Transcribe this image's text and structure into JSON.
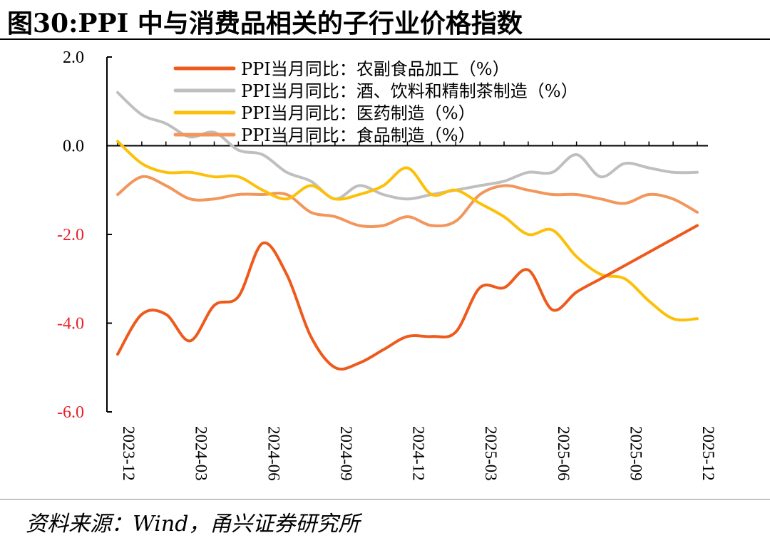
{
  "figure": {
    "title": "图30:PPI 中与消费品相关的子行业价格指数",
    "source": "资料来源：Wind，甬兴证券研究所"
  },
  "chart_data": {
    "type": "line",
    "title": "图30:PPI 中与消费品相关的子行业价格指数",
    "xlabel": "",
    "ylabel": "",
    "ylim": [
      -6.0,
      2.0
    ],
    "yticks": [
      2.0,
      0.0,
      -2.0,
      -4.0,
      -6.0
    ],
    "ytick_labels": [
      "2.0",
      "0.0",
      "-2.0",
      "-4.0",
      "-6.0"
    ],
    "negative_tick_color": "#e8212b",
    "x": [
      "2023-12",
      "2024-01",
      "2024-02",
      "2024-03",
      "2024-04",
      "2024-05",
      "2024-06",
      "2024-07",
      "2024-08",
      "2024-09",
      "2024-10",
      "2024-11",
      "2024-12",
      "2025-01",
      "2025-02",
      "2025-03",
      "2025-04",
      "2025-05",
      "2025-06",
      "2025-07",
      "2025-08",
      "2025-09",
      "2025-10",
      "2025-11",
      "2025-12"
    ],
    "x_tick_labels": [
      "2023-12",
      "2024-03",
      "2024-06",
      "2024-09",
      "2024-12",
      "2025-03",
      "2025-06",
      "2025-09",
      "2025-12"
    ],
    "legend_position": "top",
    "series": [
      {
        "name": "PPI当月同比：农副食品加工（%）",
        "color": "#ee5a1c",
        "values": [
          -4.7,
          -3.8,
          -3.8,
          -4.4,
          -3.6,
          -3.4,
          -2.2,
          -2.9,
          -4.3,
          -5.0,
          -4.9,
          -4.6,
          -4.3,
          -4.3,
          -4.2,
          -3.2,
          -3.2,
          -2.8,
          -3.7,
          -3.3,
          -3.0,
          -2.7,
          -2.4,
          -2.1,
          -1.8
        ]
      },
      {
        "name": "PPI当月同比：酒、饮料和精制茶制造（%）",
        "color": "#bfbfbf",
        "values": [
          1.2,
          0.7,
          0.5,
          0.2,
          0.3,
          -0.1,
          -0.2,
          -0.6,
          -0.8,
          -1.2,
          -0.9,
          -1.1,
          -1.2,
          -1.1,
          -1.0,
          -0.9,
          -0.8,
          -0.6,
          -0.6,
          -0.2,
          -0.7,
          -0.4,
          -0.5,
          -0.6,
          -0.6
        ]
      },
      {
        "name": "PPI当月同比：医药制造（%）",
        "color": "#fcc00b",
        "values": [
          0.1,
          -0.4,
          -0.6,
          -0.6,
          -0.7,
          -0.7,
          -1.0,
          -1.2,
          -0.9,
          -1.2,
          -1.1,
          -0.9,
          -0.5,
          -1.1,
          -1.0,
          -1.3,
          -1.6,
          -2.0,
          -1.9,
          -2.5,
          -2.9,
          -3.0,
          -3.5,
          -3.9,
          -3.9
        ]
      },
      {
        "name": "PPI当月同比：食品制造（%）",
        "color": "#f2965c",
        "values": [
          -1.1,
          -0.7,
          -0.9,
          -1.2,
          -1.2,
          -1.1,
          -1.1,
          -1.1,
          -1.5,
          -1.6,
          -1.8,
          -1.8,
          -1.6,
          -1.8,
          -1.7,
          -1.1,
          -0.9,
          -1.0,
          -1.1,
          -1.1,
          -1.2,
          -1.3,
          -1.1,
          -1.2,
          -1.5
        ]
      }
    ]
  }
}
